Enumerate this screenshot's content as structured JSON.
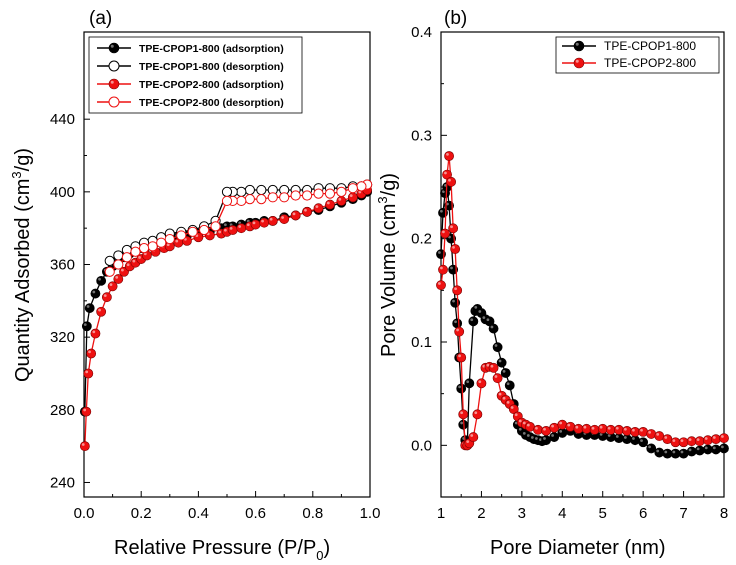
{
  "chart_data": [
    {
      "type": "scatter",
      "panel_label": "(a)",
      "xlabel": "Relative Pressure (P/P0)",
      "xlabel_main": "Relative Pressure (P/P",
      "xlabel_sub": "0",
      "xlabel_close": ")",
      "ylabel": "Quantity Adsorbed (cm3/g)",
      "ylabel_main": "Quantity Adsorbed (cm",
      "ylabel_sup": "3",
      "ylabel_close": "/g)",
      "xlim": [
        0.0,
        1.0
      ],
      "ylim": [
        232,
        488
      ],
      "xticks": [
        "0.0",
        "0.2",
        "0.4",
        "0.6",
        "0.8",
        "1.0"
      ],
      "yticks": [
        "240",
        "280",
        "320",
        "360",
        "400",
        "440"
      ],
      "legend_position": "top-left",
      "series": [
        {
          "name": "TPE-CPOP1-800 (adsorption)",
          "color": "#000000",
          "marker": "filled-circle",
          "x": [
            0.003,
            0.01,
            0.02,
            0.04,
            0.06,
            0.08,
            0.1,
            0.12,
            0.14,
            0.16,
            0.18,
            0.2,
            0.22,
            0.25,
            0.28,
            0.3,
            0.33,
            0.36,
            0.4,
            0.44,
            0.48,
            0.5,
            0.52,
            0.55,
            0.58,
            0.6,
            0.63,
            0.66,
            0.7,
            0.74,
            0.78,
            0.82,
            0.86,
            0.9,
            0.94,
            0.97,
            0.99
          ],
          "y": [
            279,
            326,
            336,
            344,
            351,
            356,
            359,
            362,
            364,
            366,
            368,
            369,
            370,
            372,
            373,
            374,
            375,
            376,
            377,
            378,
            380,
            381,
            381,
            382,
            383,
            383,
            384,
            384,
            386,
            387,
            389,
            390,
            392,
            394,
            396,
            398,
            400
          ]
        },
        {
          "name": "TPE-CPOP1-800 (desorption)",
          "color": "#000000",
          "marker": "open-circle",
          "x": [
            0.99,
            0.97,
            0.94,
            0.9,
            0.86,
            0.82,
            0.78,
            0.74,
            0.7,
            0.66,
            0.62,
            0.58,
            0.55,
            0.52,
            0.5,
            0.46,
            0.42,
            0.38,
            0.34,
            0.3,
            0.27,
            0.24,
            0.21,
            0.18,
            0.15,
            0.12,
            0.09
          ],
          "y": [
            404,
            403,
            403,
            402,
            402,
            402,
            401,
            401,
            401,
            401,
            401,
            401,
            400,
            400,
            400,
            384,
            381,
            379,
            378,
            377,
            375,
            373,
            372,
            370,
            368,
            365,
            362
          ]
        },
        {
          "name": "TPE-CPOP2-800 (adsorption)",
          "color": "#ee1111",
          "marker": "filled-circle",
          "x": [
            0.003,
            0.008,
            0.015,
            0.025,
            0.04,
            0.06,
            0.08,
            0.1,
            0.12,
            0.14,
            0.16,
            0.18,
            0.2,
            0.22,
            0.25,
            0.28,
            0.3,
            0.33,
            0.36,
            0.4,
            0.44,
            0.48,
            0.5,
            0.52,
            0.55,
            0.58,
            0.6,
            0.63,
            0.66,
            0.7,
            0.74,
            0.78,
            0.82,
            0.86,
            0.9,
            0.94,
            0.97,
            0.99
          ],
          "y": [
            260,
            279,
            300,
            311,
            322,
            334,
            342,
            348,
            352,
            356,
            359,
            361,
            363,
            365,
            367,
            369,
            370,
            372,
            373,
            375,
            376,
            377,
            378,
            379,
            380,
            381,
            382,
            383,
            384,
            385,
            387,
            389,
            391,
            393,
            395,
            397,
            399,
            401
          ]
        },
        {
          "name": "TPE-CPOP2-800 (desorption)",
          "color": "#ee1111",
          "marker": "open-circle",
          "x": [
            0.99,
            0.97,
            0.94,
            0.9,
            0.86,
            0.82,
            0.78,
            0.74,
            0.7,
            0.66,
            0.62,
            0.58,
            0.55,
            0.52,
            0.5,
            0.46,
            0.42,
            0.38,
            0.34,
            0.3,
            0.27,
            0.24,
            0.21,
            0.18,
            0.15,
            0.12,
            0.09
          ],
          "y": [
            404,
            403,
            402,
            400,
            399,
            399,
            398,
            398,
            397,
            397,
            396,
            396,
            395,
            395,
            395,
            381,
            379,
            378,
            376,
            374,
            372,
            370,
            369,
            367,
            364,
            360,
            356
          ]
        }
      ]
    },
    {
      "type": "line",
      "panel_label": "(b)",
      "xlabel": "Pore Diameter (nm)",
      "ylabel": "Pore Volume (cm3/g)",
      "ylabel_main": "Pore Volume (cm",
      "ylabel_sup": "3",
      "ylabel_close": "/g)",
      "xlim": [
        1,
        8
      ],
      "ylim": [
        -0.05,
        0.4
      ],
      "xticks": [
        "1",
        "2",
        "3",
        "4",
        "5",
        "6",
        "7",
        "8"
      ],
      "yticks": [
        "0.0",
        "0.1",
        "0.2",
        "0.3",
        "0.4"
      ],
      "legend_position": "top-right",
      "series": [
        {
          "name": "TPE-CPOP1-800",
          "color": "#000000",
          "marker": "filled-circle",
          "x": [
            1.0,
            1.05,
            1.1,
            1.15,
            1.2,
            1.25,
            1.3,
            1.35,
            1.4,
            1.45,
            1.5,
            1.55,
            1.6,
            1.65,
            1.7,
            1.8,
            1.85,
            1.9,
            2.0,
            2.1,
            2.2,
            2.3,
            2.4,
            2.5,
            2.6,
            2.7,
            2.8,
            2.9,
            3.0,
            3.1,
            3.2,
            3.3,
            3.4,
            3.5,
            3.6,
            3.8,
            4.0,
            4.2,
            4.4,
            4.6,
            4.8,
            5.0,
            5.2,
            5.4,
            5.6,
            5.8,
            6.0,
            6.2,
            6.4,
            6.6,
            6.8,
            7.0,
            7.2,
            7.4,
            7.6,
            7.8,
            8.0
          ],
          "y": [
            0.185,
            0.225,
            0.244,
            0.25,
            0.232,
            0.2,
            0.17,
            0.138,
            0.118,
            0.085,
            0.055,
            0.02,
            0.005,
            0.0,
            0.06,
            0.12,
            0.13,
            0.132,
            0.128,
            0.122,
            0.12,
            0.113,
            0.095,
            0.08,
            0.07,
            0.058,
            0.04,
            0.02,
            0.014,
            0.01,
            0.008,
            0.006,
            0.005,
            0.004,
            0.005,
            0.008,
            0.012,
            0.014,
            0.011,
            0.01,
            0.01,
            0.009,
            0.008,
            0.007,
            0.006,
            0.005,
            0.003,
            -0.003,
            -0.007,
            -0.008,
            -0.008,
            -0.008,
            -0.006,
            -0.005,
            -0.004,
            -0.004,
            -0.003
          ]
        },
        {
          "name": "TPE-CPOP2-800",
          "color": "#ee1111",
          "marker": "filled-circle",
          "x": [
            1.0,
            1.05,
            1.1,
            1.15,
            1.2,
            1.25,
            1.3,
            1.35,
            1.4,
            1.45,
            1.5,
            1.55,
            1.6,
            1.65,
            1.7,
            1.8,
            1.9,
            2.0,
            2.1,
            2.2,
            2.3,
            2.4,
            2.5,
            2.6,
            2.7,
            2.8,
            2.9,
            3.0,
            3.1,
            3.2,
            3.4,
            3.6,
            3.8,
            4.0,
            4.2,
            4.4,
            4.6,
            4.8,
            5.0,
            5.2,
            5.4,
            5.6,
            5.8,
            6.0,
            6.2,
            6.4,
            6.6,
            6.8,
            7.0,
            7.2,
            7.4,
            7.6,
            7.8,
            8.0
          ],
          "y": [
            0.155,
            0.17,
            0.205,
            0.262,
            0.28,
            0.255,
            0.21,
            0.19,
            0.15,
            0.11,
            0.085,
            0.03,
            0.0,
            0.0,
            0.002,
            0.008,
            0.03,
            0.06,
            0.075,
            0.076,
            0.075,
            0.065,
            0.048,
            0.044,
            0.04,
            0.035,
            0.028,
            0.022,
            0.02,
            0.018,
            0.015,
            0.014,
            0.017,
            0.02,
            0.018,
            0.016,
            0.016,
            0.015,
            0.016,
            0.015,
            0.015,
            0.014,
            0.013,
            0.013,
            0.011,
            0.009,
            0.006,
            0.003,
            0.003,
            0.004,
            0.004,
            0.005,
            0.006,
            0.007
          ]
        }
      ]
    }
  ]
}
